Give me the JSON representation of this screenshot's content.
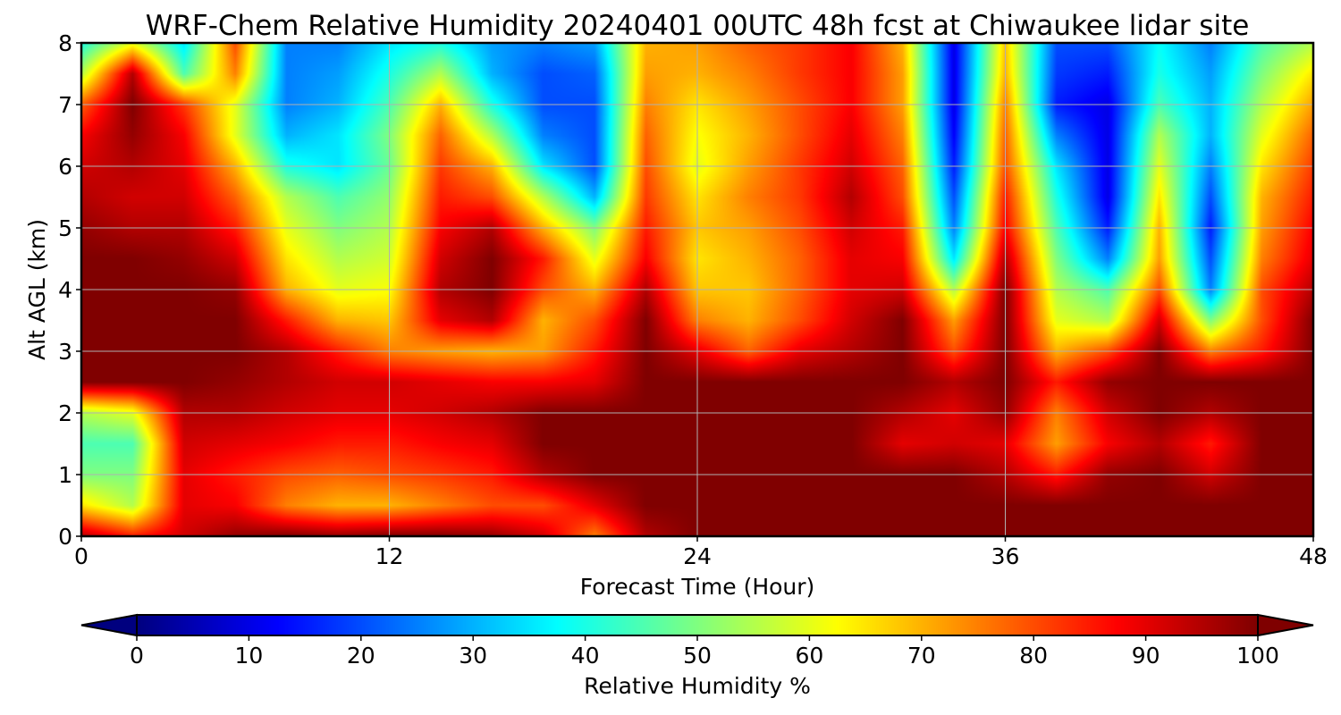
{
  "chart_data": {
    "type": "heatmap",
    "title": "WRF-Chem Relative Humidity 20240401 00UTC 48h fcst at Chiwaukee lidar site",
    "xlabel": "Forecast Time (Hour)",
    "ylabel": "Alt AGL (km)",
    "xlim": [
      0,
      48
    ],
    "ylim": [
      0,
      8
    ],
    "x_ticks": [
      "0",
      "12",
      "24",
      "36",
      "48"
    ],
    "y_ticks": [
      "0",
      "1",
      "2",
      "3",
      "4",
      "5",
      "6",
      "7",
      "8"
    ],
    "grid": true,
    "colormap": "jet",
    "colorbar": {
      "label": "Relative Humidity %",
      "range": [
        0,
        100
      ],
      "ticks": [
        "0",
        "10",
        "20",
        "30",
        "40",
        "50",
        "60",
        "70",
        "80",
        "90",
        "100"
      ],
      "extend": "both",
      "orientation": "horizontal"
    },
    "x_hours": [
      0,
      2,
      4,
      6,
      8,
      10,
      12,
      14,
      16,
      18,
      20,
      22,
      24,
      26,
      28,
      30,
      32,
      34,
      36,
      38,
      40,
      42,
      44,
      46,
      48
    ],
    "y_km": [
      0,
      0.5,
      1,
      1.5,
      2,
      2.5,
      3,
      3.5,
      4,
      4.5,
      5,
      5.5,
      6,
      6.5,
      7,
      7.5,
      8
    ],
    "rh_percent": [
      [
        95,
        85,
        92,
        98,
        100,
        98,
        100,
        100,
        98,
        92,
        75,
        95,
        100,
        100,
        100,
        100,
        100,
        100,
        100,
        100,
        100,
        100,
        100,
        100,
        100
      ],
      [
        65,
        55,
        90,
        88,
        75,
        70,
        70,
        75,
        80,
        80,
        90,
        100,
        100,
        100,
        100,
        100,
        100,
        100,
        100,
        100,
        100,
        100,
        100,
        100,
        100
      ],
      [
        50,
        50,
        90,
        85,
        80,
        78,
        80,
        82,
        85,
        95,
        100,
        100,
        100,
        100,
        100,
        100,
        100,
        100,
        95,
        85,
        98,
        100,
        92,
        100,
        100
      ],
      [
        45,
        45,
        92,
        90,
        88,
        85,
        85,
        88,
        90,
        100,
        100,
        100,
        100,
        100,
        100,
        100,
        90,
        92,
        90,
        72,
        88,
        95,
        85,
        100,
        100
      ],
      [
        55,
        60,
        95,
        95,
        92,
        90,
        90,
        92,
        95,
        100,
        100,
        100,
        100,
        100,
        100,
        100,
        95,
        90,
        98,
        75,
        92,
        100,
        95,
        100,
        100
      ],
      [
        100,
        100,
        100,
        98,
        95,
        92,
        92,
        90,
        88,
        88,
        90,
        100,
        100,
        100,
        100,
        100,
        100,
        95,
        100,
        85,
        98,
        100,
        100,
        100,
        100
      ],
      [
        100,
        100,
        100,
        100,
        95,
        85,
        75,
        72,
        70,
        72,
        85,
        100,
        90,
        78,
        90,
        95,
        100,
        80,
        100,
        70,
        80,
        100,
        75,
        85,
        100
      ],
      [
        100,
        100,
        100,
        100,
        85,
        70,
        68,
        90,
        95,
        70,
        80,
        100,
        75,
        70,
        80,
        92,
        100,
        72,
        100,
        60,
        55,
        92,
        50,
        80,
        100
      ],
      [
        100,
        100,
        100,
        98,
        70,
        60,
        62,
        95,
        100,
        80,
        70,
        95,
        68,
        68,
        78,
        90,
        92,
        55,
        100,
        55,
        45,
        80,
        25,
        80,
        95
      ],
      [
        100,
        100,
        98,
        92,
        65,
        55,
        58,
        92,
        100,
        85,
        60,
        88,
        65,
        70,
        78,
        90,
        88,
        35,
        95,
        50,
        25,
        72,
        20,
        75,
        90
      ],
      [
        98,
        95,
        95,
        85,
        60,
        50,
        55,
        88,
        95,
        70,
        50,
        85,
        68,
        72,
        80,
        92,
        85,
        25,
        88,
        45,
        15,
        70,
        15,
        72,
        88
      ],
      [
        95,
        92,
        92,
        78,
        55,
        45,
        52,
        85,
        80,
        55,
        30,
        82,
        65,
        75,
        82,
        95,
        80,
        20,
        85,
        40,
        10,
        65,
        20,
        70,
        85
      ],
      [
        92,
        95,
        90,
        70,
        40,
        35,
        48,
        82,
        70,
        35,
        20,
        80,
        60,
        72,
        82,
        92,
        78,
        15,
        80,
        35,
        10,
        60,
        25,
        65,
        82
      ],
      [
        88,
        98,
        88,
        60,
        30,
        35,
        50,
        78,
        55,
        25,
        20,
        78,
        62,
        70,
        80,
        90,
        75,
        12,
        78,
        25,
        10,
        55,
        30,
        60,
        78
      ],
      [
        78,
        100,
        82,
        60,
        25,
        30,
        45,
        70,
        40,
        20,
        20,
        75,
        65,
        72,
        80,
        88,
        72,
        10,
        75,
        15,
        10,
        45,
        30,
        55,
        72
      ],
      [
        55,
        95,
        45,
        75,
        25,
        28,
        40,
        55,
        30,
        20,
        22,
        72,
        70,
        75,
        82,
        88,
        72,
        10,
        70,
        18,
        15,
        40,
        28,
        50,
        65
      ],
      [
        40,
        60,
        35,
        80,
        25,
        25,
        35,
        40,
        28,
        25,
        28,
        70,
        72,
        78,
        82,
        88,
        70,
        10,
        68,
        20,
        20,
        38,
        25,
        45,
        55
      ]
    ]
  }
}
